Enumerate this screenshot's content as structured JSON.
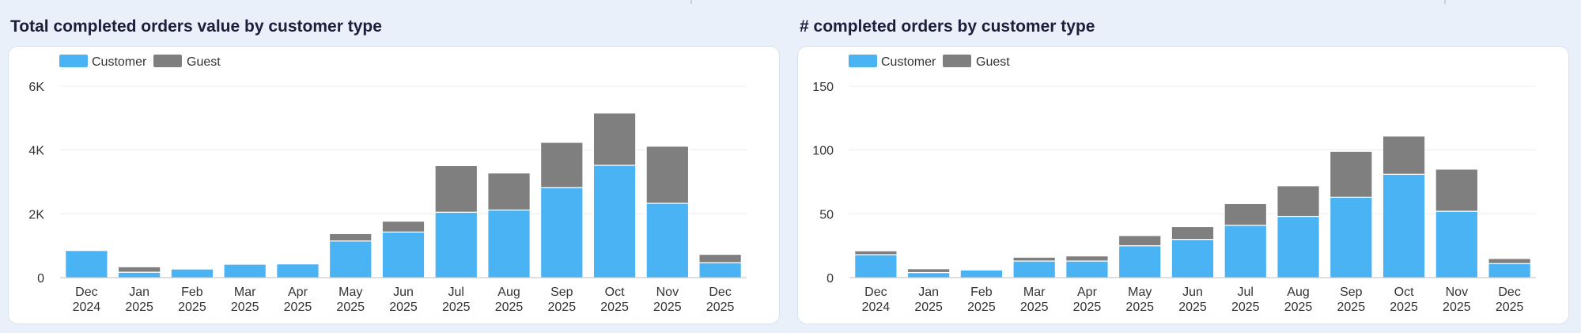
{
  "colors": {
    "customer": "#4ab3f4",
    "guest": "#7f7f7f",
    "grid": "#ececec"
  },
  "charts": [
    {
      "title": "Total completed orders value by customer type",
      "legend": [
        "Customer",
        "Guest"
      ],
      "y_ticks": [
        "0",
        "2K",
        "4K",
        "6K"
      ],
      "x_ticks": [
        [
          "Dec",
          "2024"
        ],
        [
          "Jan",
          "2025"
        ],
        [
          "Feb",
          "2025"
        ],
        [
          "Mar",
          "2025"
        ],
        [
          "Apr",
          "2025"
        ],
        [
          "May",
          "2025"
        ],
        [
          "Jun",
          "2025"
        ],
        [
          "Jul",
          "2025"
        ],
        [
          "Aug",
          "2025"
        ],
        [
          "Sep",
          "2025"
        ],
        [
          "Oct",
          "2025"
        ],
        [
          "Nov",
          "2025"
        ],
        [
          "Dec",
          "2025"
        ]
      ]
    },
    {
      "title": "# completed orders by customer type",
      "legend": [
        "Customer",
        "Guest"
      ],
      "y_ticks": [
        "0",
        "50",
        "100",
        "150"
      ],
      "x_ticks": [
        [
          "Dec",
          "2024"
        ],
        [
          "Jan",
          "2025"
        ],
        [
          "Feb",
          "2025"
        ],
        [
          "Mar",
          "2025"
        ],
        [
          "Apr",
          "2025"
        ],
        [
          "May",
          "2025"
        ],
        [
          "Jun",
          "2025"
        ],
        [
          "Jul",
          "2025"
        ],
        [
          "Aug",
          "2025"
        ],
        [
          "Sep",
          "2025"
        ],
        [
          "Oct",
          "2025"
        ],
        [
          "Nov",
          "2025"
        ],
        [
          "Dec",
          "2025"
        ]
      ]
    }
  ],
  "chart_data": [
    {
      "type": "bar",
      "stacked": true,
      "title": "Total completed orders value by customer type",
      "categories": [
        "Dec 2024",
        "Jan 2025",
        "Feb 2025",
        "Mar 2025",
        "Apr 2025",
        "May 2025",
        "Jun 2025",
        "Jul 2025",
        "Aug 2025",
        "Sep 2025",
        "Oct 2025",
        "Nov 2025",
        "Dec 2025"
      ],
      "series": [
        {
          "name": "Customer",
          "values": [
            850,
            170,
            270,
            420,
            430,
            1150,
            1430,
            2050,
            2120,
            2820,
            3520,
            2330,
            470
          ]
        },
        {
          "name": "Guest",
          "values": [
            0,
            170,
            0,
            0,
            0,
            230,
            340,
            1460,
            1160,
            1420,
            1640,
            1790,
            260
          ]
        }
      ],
      "ylim": [
        0,
        6000
      ],
      "yticks": [
        0,
        2000,
        4000,
        6000
      ],
      "grid": true,
      "legend": "top-left"
    },
    {
      "type": "bar",
      "stacked": true,
      "title": "# completed orders by customer type",
      "categories": [
        "Dec 2024",
        "Jan 2025",
        "Feb 2025",
        "Mar 2025",
        "Apr 2025",
        "May 2025",
        "Jun 2025",
        "Jul 2025",
        "Aug 2025",
        "Sep 2025",
        "Oct 2025",
        "Nov 2025",
        "Dec 2025"
      ],
      "series": [
        {
          "name": "Customer",
          "values": [
            18,
            4,
            6,
            13,
            13,
            25,
            30,
            41,
            48,
            63,
            81,
            52,
            11
          ]
        },
        {
          "name": "Guest",
          "values": [
            3,
            3,
            0,
            3,
            4,
            8,
            10,
            17,
            24,
            36,
            30,
            33,
            4
          ]
        }
      ],
      "ylim": [
        0,
        150
      ],
      "yticks": [
        0,
        50,
        100,
        150
      ],
      "grid": true,
      "legend": "top-left"
    }
  ]
}
